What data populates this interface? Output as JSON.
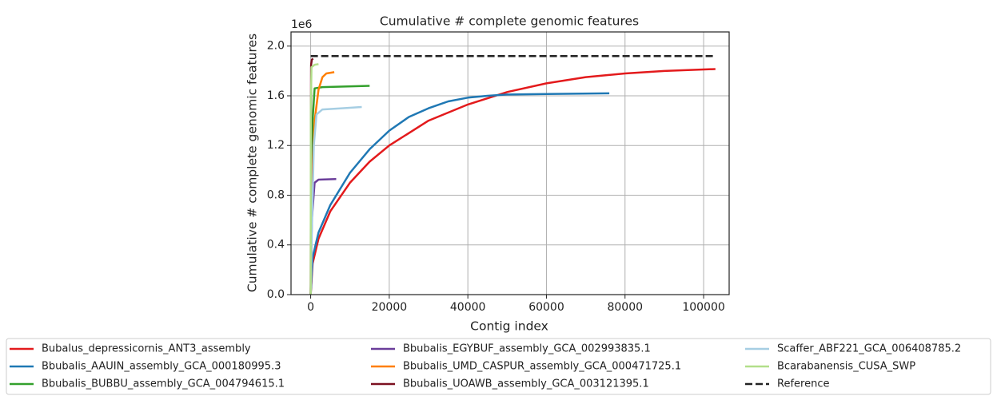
{
  "chart_data": {
    "type": "line",
    "title": "Cumulative # complete genomic features",
    "x_label": "Contig index",
    "y_label": "Cumulative # complete genomic features",
    "y_offset_label": "1e6",
    "xlim": [
      -5000,
      106500
    ],
    "ylim": [
      0,
      2.114
    ],
    "xticks": [
      0,
      20000,
      40000,
      60000,
      80000,
      100000
    ],
    "yticks": [
      {
        "value": 0,
        "label": "0.0"
      },
      0.4,
      0.8,
      1.2,
      1.6,
      {
        "value": 2,
        "label": "2.0"
      }
    ],
    "grid": true,
    "legend": "below",
    "series": [
      {
        "name": "Bubalus_depressicornis_ANT3_assembly",
        "color": "#e31a1c",
        "x": [
          0,
          500,
          2000,
          5000,
          10000,
          15000,
          20000,
          30000,
          40000,
          50000,
          60000,
          70000,
          80000,
          90000,
          103000
        ],
        "values": [
          0,
          0.25,
          0.45,
          0.67,
          0.9,
          1.07,
          1.2,
          1.4,
          1.53,
          1.63,
          1.7,
          1.75,
          1.78,
          1.8,
          1.815
        ]
      },
      {
        "name": "Bbubalis_AAUIN_assembly_GCA_000180995.3",
        "color": "#1f78b4",
        "x": [
          0,
          500,
          2000,
          5000,
          10000,
          15000,
          20000,
          25000,
          30000,
          35000,
          40000,
          45000,
          50000,
          60000,
          76000
        ],
        "values": [
          0,
          0.3,
          0.5,
          0.72,
          0.98,
          1.17,
          1.32,
          1.43,
          1.5,
          1.555,
          1.585,
          1.6,
          1.61,
          1.615,
          1.62
        ]
      },
      {
        "name": "Bbubalis_BUBBU_assembly_GCA_004794615.1",
        "color": "#33a02c",
        "x": [
          0,
          500,
          1000,
          3000,
          15000
        ],
        "values": [
          0,
          1.4,
          1.66,
          1.67,
          1.68
        ]
      },
      {
        "name": "Bbubalis_EGYBUF_assembly_GCA_002993835.1",
        "color": "#6a3d9a",
        "x": [
          0,
          300,
          1000,
          2000,
          6500
        ],
        "values": [
          0,
          0.6,
          0.9,
          0.925,
          0.93
        ]
      },
      {
        "name": "Bbubalis_UMD_CASPUR_assembly_GCA_000471725.1",
        "color": "#ff7f00",
        "x": [
          0,
          500,
          1000,
          2000,
          3000,
          4000,
          6000
        ],
        "values": [
          0,
          1.0,
          1.4,
          1.65,
          1.75,
          1.78,
          1.79
        ]
      },
      {
        "name": "Bbubalis_UOAWB_assembly_GCA_003121395.1",
        "color": "#7b1020",
        "x": [
          0,
          100,
          300,
          600
        ],
        "values": [
          0,
          1.85,
          1.89,
          1.9
        ]
      },
      {
        "name": "Scaffer_ABF221_GCA_006408785.2",
        "color": "#a6cee3",
        "x": [
          0,
          300,
          800,
          1500,
          3000,
          8000,
          13000
        ],
        "values": [
          0,
          0.5,
          1.2,
          1.45,
          1.49,
          1.5,
          1.51
        ]
      },
      {
        "name": "Bcarabanensis_CUSA_SWP",
        "color": "#b2df8a",
        "x": [
          0,
          50,
          200,
          1000,
          2000
        ],
        "values": [
          0,
          1.5,
          1.83,
          1.85,
          1.855
        ]
      },
      {
        "name": "Reference",
        "color": "#222222",
        "linestyle": "dashed",
        "x": [
          0,
          103000
        ],
        "values": [
          1.92,
          1.92
        ]
      }
    ]
  }
}
